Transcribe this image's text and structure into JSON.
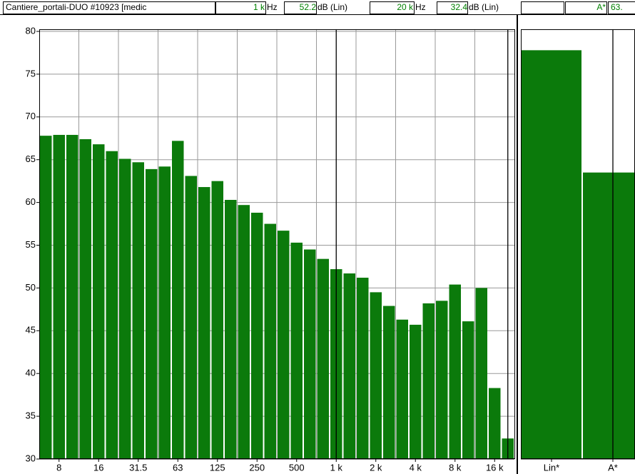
{
  "header": {
    "title": "Cantiere_portali-DUO #10923 [medic",
    "cursor1_freq": "1 k",
    "cursor1_unit": "Hz",
    "cursor1_level": "52.2",
    "cursor1_level_unit": "dB (Lin)",
    "cursor2_freq": "20 k",
    "cursor2_unit": "Hz",
    "cursor2_level": "32.4",
    "cursor2_level_unit": "dB (Lin)",
    "overall_cursor": "A*",
    "overall_level": "63."
  },
  "chart_data": [
    {
      "type": "bar",
      "color": "#0b7a0b",
      "categories": [
        null,
        "8",
        null,
        null,
        "16",
        null,
        null,
        "31.5",
        null,
        null,
        "63",
        null,
        null,
        "125",
        null,
        null,
        "250",
        null,
        null,
        "500",
        null,
        null,
        "1 k",
        null,
        null,
        "2 k",
        null,
        null,
        "4 k",
        null,
        null,
        "8 k",
        null,
        null,
        "16 k",
        null
      ],
      "values": [
        67.8,
        67.9,
        67.9,
        67.4,
        66.8,
        66.0,
        65.1,
        64.7,
        63.9,
        64.2,
        67.2,
        63.1,
        61.8,
        62.5,
        60.3,
        59.7,
        58.8,
        57.5,
        56.7,
        55.3,
        54.5,
        53.4,
        52.2,
        51.7,
        51.2,
        49.5,
        47.9,
        46.3,
        45.7,
        48.2,
        48.5,
        50.4,
        46.1,
        50.0,
        38.3,
        32.4
      ],
      "ylim": [
        30,
        80
      ],
      "yticks": [
        30,
        35,
        40,
        45,
        50,
        55,
        60,
        65,
        70,
        75,
        80
      ],
      "grid": true
    },
    {
      "type": "bar",
      "color": "#0b7a0b",
      "categories": [
        "Lin*",
        "A*"
      ],
      "values": [
        77.8,
        63.5
      ],
      "ylim": [
        30,
        80
      ]
    }
  ]
}
